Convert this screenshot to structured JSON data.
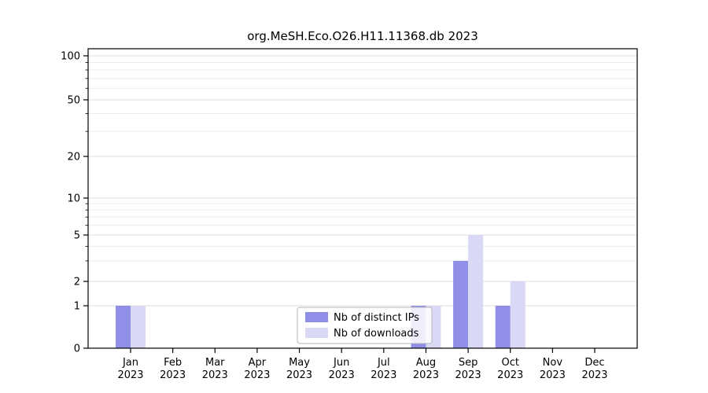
{
  "chart_data": {
    "type": "bar",
    "title": "org.MeSH.Eco.O26.H11.11368.db 2023",
    "scale": "symlog",
    "grid": true,
    "ylim": [
      0,
      100
    ],
    "yticks": [
      0,
      1,
      2,
      5,
      10,
      20,
      50,
      100
    ],
    "minor_gridlines": [
      3,
      4,
      6,
      7,
      8,
      9,
      30,
      40,
      60,
      70,
      80,
      90
    ],
    "categories": [
      "Jan",
      "Feb",
      "Mar",
      "Apr",
      "May",
      "Jun",
      "Jul",
      "Aug",
      "Sep",
      "Oct",
      "Nov",
      "Dec"
    ],
    "category_year": "2023",
    "series": [
      {
        "name": "Nb of distinct IPs",
        "color": "#8f8fe8",
        "values": [
          1,
          0,
          0,
          0,
          0,
          0,
          0,
          1,
          3,
          1,
          0,
          0
        ]
      },
      {
        "name": "Nb of downloads",
        "color": "#d9d9f6",
        "values": [
          1,
          0,
          0,
          0,
          0,
          0,
          0,
          1,
          5,
          2,
          0,
          0
        ]
      }
    ],
    "legend_position": "bottom-center",
    "colors": {
      "axis": "#000000",
      "grid_major": "#dedede",
      "grid_minor": "#ececec",
      "legend_border": "#b5b5b5",
      "legend_bg": "#ffffff"
    }
  }
}
